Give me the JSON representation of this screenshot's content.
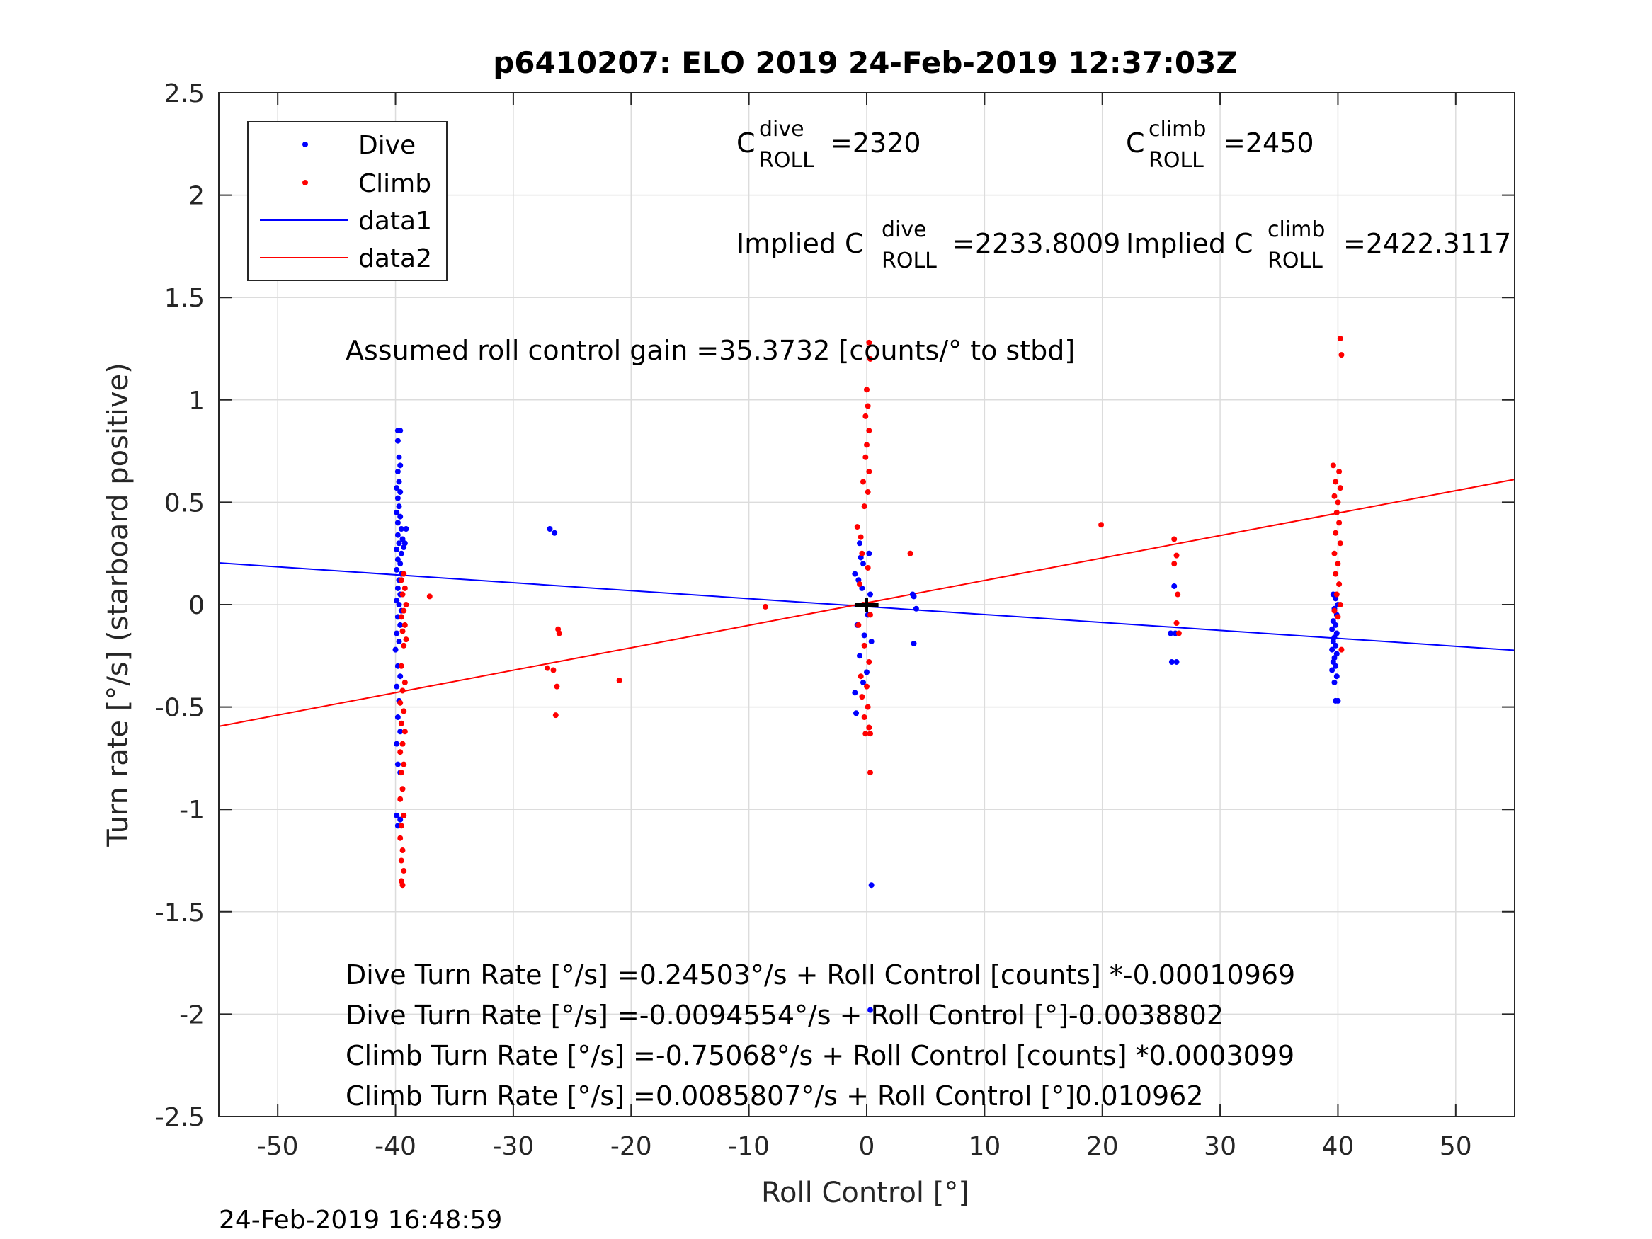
{
  "chart_data": {
    "type": "scatter",
    "title": "p6410207: ELO 2019 24-Feb-2019 12:37:03Z",
    "xlabel": "Roll Control [°]",
    "ylabel": "Turn rate [°/s] (starboard positive)",
    "xlim": [
      -55,
      55
    ],
    "ylim": [
      -2.5,
      2.5
    ],
    "xticks": [
      "-50",
      "-40",
      "-30",
      "-20",
      "-10",
      "0",
      "10",
      "20",
      "30",
      "40",
      "50"
    ],
    "yticks": [
      "-2.5",
      "-2",
      "-1.5",
      "-1",
      "-0.5",
      "0",
      "0.5",
      "1",
      "1.5",
      "2",
      "2.5"
    ],
    "grid": true,
    "legend": {
      "position": "top-left",
      "entries": [
        "Dive",
        "Climb",
        "data1",
        "data2"
      ]
    },
    "series": [
      {
        "name": "Dive",
        "marker": "dot",
        "color": "#0000ff",
        "points": [
          [
            -39.8,
            0.85
          ],
          [
            -39.6,
            0.85
          ],
          [
            -39.8,
            0.8
          ],
          [
            -39.7,
            0.72
          ],
          [
            -39.6,
            0.68
          ],
          [
            -39.8,
            0.65
          ],
          [
            -39.7,
            0.6
          ],
          [
            -39.9,
            0.57
          ],
          [
            -39.6,
            0.55
          ],
          [
            -39.8,
            0.52
          ],
          [
            -39.7,
            0.48
          ],
          [
            -39.9,
            0.45
          ],
          [
            -39.6,
            0.43
          ],
          [
            -39.8,
            0.4
          ],
          [
            -39.5,
            0.37
          ],
          [
            -39.1,
            0.37
          ],
          [
            -39.8,
            0.34
          ],
          [
            -39.4,
            0.32
          ],
          [
            -39.7,
            0.3
          ],
          [
            -39.2,
            0.3
          ],
          [
            -39.9,
            0.27
          ],
          [
            -39.5,
            0.25
          ],
          [
            -39.3,
            0.28
          ],
          [
            -39.8,
            0.22
          ],
          [
            -39.6,
            0.2
          ],
          [
            -39.9,
            0.17
          ],
          [
            -39.5,
            0.15
          ],
          [
            -39.7,
            0.12
          ],
          [
            -39.8,
            0.08
          ],
          [
            -39.6,
            0.05
          ],
          [
            -39.9,
            0.02
          ],
          [
            -39.7,
            0.0
          ],
          [
            -39.5,
            -0.03
          ],
          [
            -39.8,
            -0.06
          ],
          [
            -39.6,
            -0.1
          ],
          [
            -39.9,
            -0.14
          ],
          [
            -39.7,
            -0.18
          ],
          [
            -40.0,
            -0.22
          ],
          [
            -39.8,
            -0.3
          ],
          [
            -39.6,
            -0.35
          ],
          [
            -39.9,
            -0.4
          ],
          [
            -39.7,
            -0.47
          ],
          [
            -39.8,
            -0.55
          ],
          [
            -39.6,
            -0.62
          ],
          [
            -39.9,
            -0.68
          ],
          [
            -39.8,
            -0.78
          ],
          [
            -39.6,
            -0.82
          ],
          [
            -39.9,
            -1.03
          ],
          [
            -39.6,
            -1.05
          ],
          [
            -39.8,
            -1.08
          ],
          [
            -26.9,
            0.37
          ],
          [
            -26.5,
            0.35
          ],
          [
            -1.0,
            0.15
          ],
          [
            -0.7,
            0.12
          ],
          [
            -0.5,
            0.23
          ],
          [
            -0.3,
            0.2
          ],
          [
            0.2,
            0.25
          ],
          [
            -0.6,
            0.3
          ],
          [
            -0.4,
            0.08
          ],
          [
            0.3,
            0.05
          ],
          [
            0.1,
            -0.05
          ],
          [
            -0.8,
            -0.1
          ],
          [
            -0.2,
            -0.15
          ],
          [
            0.4,
            -0.18
          ],
          [
            -0.6,
            -0.25
          ],
          [
            0.0,
            -0.33
          ],
          [
            -0.3,
            -0.38
          ],
          [
            -1.0,
            -0.43
          ],
          [
            -0.9,
            -0.53
          ],
          [
            0.4,
            -1.37
          ],
          [
            0.3,
            -1.98
          ],
          [
            3.9,
            0.05
          ],
          [
            4.0,
            0.04
          ],
          [
            4.2,
            -0.02
          ],
          [
            4.0,
            -0.19
          ],
          [
            25.8,
            -0.14
          ],
          [
            26.2,
            -0.14
          ],
          [
            26.1,
            0.09
          ],
          [
            25.9,
            -0.28
          ],
          [
            26.3,
            -0.28
          ],
          [
            39.6,
            0.05
          ],
          [
            39.8,
            0.03
          ],
          [
            40.0,
            0.0
          ],
          [
            39.7,
            -0.02
          ],
          [
            39.9,
            -0.05
          ],
          [
            39.6,
            -0.08
          ],
          [
            39.8,
            -0.1
          ],
          [
            39.5,
            -0.12
          ],
          [
            39.9,
            -0.14
          ],
          [
            39.7,
            -0.16
          ],
          [
            39.6,
            -0.18
          ],
          [
            39.8,
            -0.2
          ],
          [
            39.5,
            -0.22
          ],
          [
            39.9,
            -0.24
          ],
          [
            39.7,
            -0.26
          ],
          [
            39.6,
            -0.28
          ],
          [
            39.8,
            -0.3
          ],
          [
            39.5,
            -0.32
          ],
          [
            39.9,
            -0.35
          ],
          [
            39.7,
            -0.38
          ],
          [
            39.8,
            -0.47
          ],
          [
            40.0,
            -0.47
          ]
        ]
      },
      {
        "name": "Climb",
        "marker": "dot",
        "color": "#ff0000",
        "points": [
          [
            -39.3,
            0.15
          ],
          [
            -39.5,
            0.12
          ],
          [
            -39.2,
            0.08
          ],
          [
            -39.4,
            0.05
          ],
          [
            -39.1,
            0.0
          ],
          [
            -39.3,
            -0.03
          ],
          [
            -39.5,
            -0.06
          ],
          [
            -39.2,
            -0.1
          ],
          [
            -39.4,
            -0.13
          ],
          [
            -39.1,
            -0.17
          ],
          [
            -39.3,
            -0.2
          ],
          [
            -39.5,
            -0.3
          ],
          [
            -39.2,
            -0.38
          ],
          [
            -39.4,
            -0.42
          ],
          [
            -39.6,
            -0.48
          ],
          [
            -39.3,
            -0.52
          ],
          [
            -39.5,
            -0.58
          ],
          [
            -39.2,
            -0.62
          ],
          [
            -39.4,
            -0.68
          ],
          [
            -39.6,
            -0.72
          ],
          [
            -39.3,
            -0.78
          ],
          [
            -39.5,
            -0.82
          ],
          [
            -39.4,
            -0.9
          ],
          [
            -39.6,
            -0.95
          ],
          [
            -39.3,
            -1.03
          ],
          [
            -39.5,
            -1.08
          ],
          [
            -39.6,
            -1.14
          ],
          [
            -39.4,
            -1.2
          ],
          [
            -39.5,
            -1.25
          ],
          [
            -39.3,
            -1.3
          ],
          [
            -39.5,
            -1.35
          ],
          [
            -39.4,
            -1.37
          ],
          [
            -37.1,
            0.04
          ],
          [
            -27.1,
            -0.31
          ],
          [
            -26.6,
            -0.32
          ],
          [
            -26.3,
            -0.4
          ],
          [
            -26.2,
            -0.12
          ],
          [
            -26.1,
            -0.14
          ],
          [
            -26.4,
            -0.54
          ],
          [
            -21.0,
            -0.37
          ],
          [
            -8.6,
            -0.01
          ],
          [
            -0.8,
            0.38
          ],
          [
            -0.5,
            0.33
          ],
          [
            -0.2,
            0.48
          ],
          [
            0.1,
            0.55
          ],
          [
            -0.3,
            0.6
          ],
          [
            0.2,
            0.65
          ],
          [
            -0.1,
            0.72
          ],
          [
            0.0,
            0.78
          ],
          [
            0.2,
            0.85
          ],
          [
            -0.1,
            0.92
          ],
          [
            0.1,
            0.97
          ],
          [
            0.0,
            1.05
          ],
          [
            0.3,
            1.2
          ],
          [
            0.2,
            1.28
          ],
          [
            -0.4,
            0.25
          ],
          [
            0.1,
            0.18
          ],
          [
            -0.6,
            0.1
          ],
          [
            -0.3,
            0.0
          ],
          [
            0.3,
            -0.05
          ],
          [
            -0.7,
            -0.1
          ],
          [
            -0.2,
            -0.2
          ],
          [
            0.2,
            -0.28
          ],
          [
            -0.5,
            -0.35
          ],
          [
            0.0,
            -0.4
          ],
          [
            -0.4,
            -0.45
          ],
          [
            0.1,
            -0.5
          ],
          [
            -0.2,
            -0.55
          ],
          [
            0.2,
            -0.6
          ],
          [
            -0.1,
            -0.63
          ],
          [
            0.3,
            -0.63
          ],
          [
            0.3,
            -0.82
          ],
          [
            3.7,
            0.25
          ],
          [
            19.9,
            0.39
          ],
          [
            26.1,
            0.32
          ],
          [
            26.3,
            0.24
          ],
          [
            26.1,
            0.2
          ],
          [
            26.4,
            0.05
          ],
          [
            26.3,
            -0.09
          ],
          [
            26.5,
            -0.14
          ],
          [
            39.6,
            0.68
          ],
          [
            40.1,
            0.65
          ],
          [
            39.8,
            0.6
          ],
          [
            40.2,
            0.57
          ],
          [
            39.7,
            0.53
          ],
          [
            40.0,
            0.5
          ],
          [
            39.9,
            0.45
          ],
          [
            40.1,
            0.4
          ],
          [
            39.8,
            0.35
          ],
          [
            40.2,
            0.3
          ],
          [
            39.7,
            0.25
          ],
          [
            40.0,
            0.2
          ],
          [
            39.8,
            0.15
          ],
          [
            40.1,
            0.1
          ],
          [
            39.9,
            0.05
          ],
          [
            40.2,
            0.0
          ],
          [
            39.7,
            -0.03
          ],
          [
            40.0,
            -0.06
          ],
          [
            40.3,
            -0.22
          ],
          [
            40.2,
            1.3
          ],
          [
            40.3,
            1.22
          ]
        ]
      },
      {
        "name": "data1",
        "type": "line",
        "color": "#0000ff",
        "slope": -0.0038802,
        "intercept": -0.0094554
      },
      {
        "name": "data2",
        "type": "line",
        "color": "#ff0000",
        "slope": 0.010962,
        "intercept": 0.0085807
      }
    ],
    "marker_black": {
      "x_range": [
        -1,
        1
      ],
      "y": 0
    },
    "annotations": {
      "c_dive_base": "C",
      "c_dive_sup": "dive",
      "c_dive_sub": "ROLL",
      "c_dive_value": "=2320",
      "c_climb_base": "C",
      "c_climb_sup": "climb",
      "c_climb_sub": "ROLL",
      "c_climb_value": "=2450",
      "implied_dive_prefix": "Implied C",
      "implied_dive_sup": "dive",
      "implied_dive_sub": "ROLL",
      "implied_dive_value": "=2233.8009",
      "implied_climb_prefix": "Implied C",
      "implied_climb_sup": "climb",
      "implied_climb_sub": "ROLL",
      "implied_climb_value": "=2422.3117",
      "gain": "Assumed roll control gain =35.3732 [counts/° to stbd]",
      "eq1": "Dive Turn Rate [°/s] =0.24503°/s + Roll Control [counts] *-0.00010969",
      "eq2": "Dive Turn Rate [°/s] =-0.0094554°/s + Roll Control [°]-0.0038802",
      "eq3": "Climb Turn Rate [°/s] =-0.75068°/s + Roll Control [counts] *0.0003099",
      "eq4": "Climb Turn Rate [°/s] =0.0085807°/s + Roll Control [°]0.010962"
    },
    "footer": "24-Feb-2019 16:48:59"
  }
}
